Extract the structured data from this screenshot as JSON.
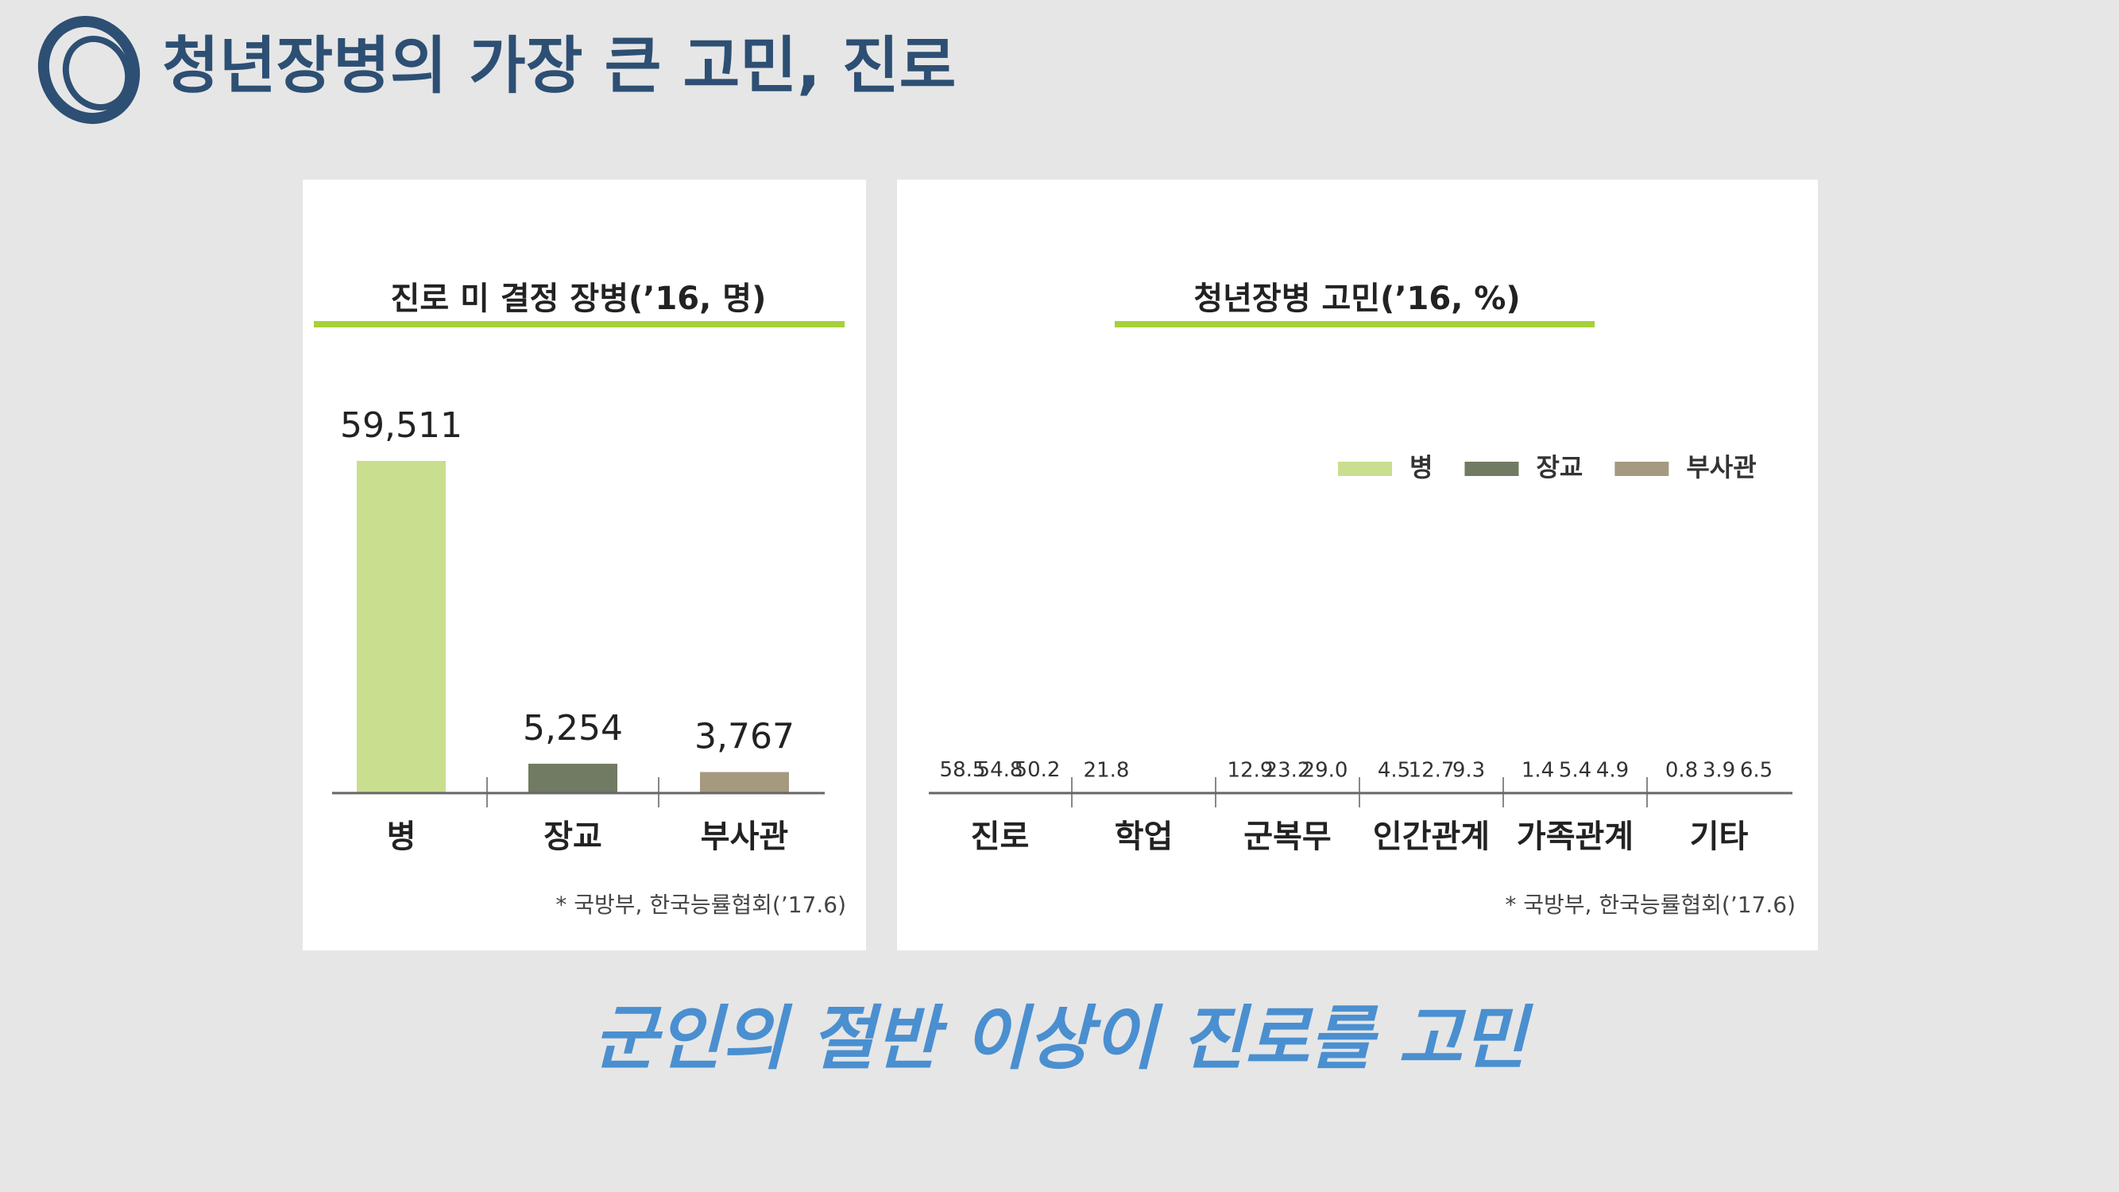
{
  "header": {
    "title": "청년장병의 가장 큰 고민, 진로"
  },
  "caption": "군인의 절반 이상이 진로를 고민",
  "chart_data": [
    {
      "type": "bar",
      "title": "진로 미 결정 장병(’16, 명)",
      "categories": [
        "병",
        "장교",
        "부사관"
      ],
      "values": [
        59511,
        5254,
        3767
      ],
      "value_labels": [
        "59,511",
        "5,254",
        "3,767"
      ],
      "colors": [
        "#c9de8f",
        "#717a62",
        "#a59a80"
      ],
      "note": "* 국방부, 한국능률협회(’17.6)"
    },
    {
      "type": "bar",
      "title": "청년장병 고민(’16, %)",
      "categories": [
        "진로",
        "학업",
        "군복무",
        "인간관계",
        "가족관계",
        "기타"
      ],
      "series": [
        {
          "name": "병",
          "color": "#c9de8f",
          "values": [
            58.5,
            21.8,
            12.9,
            4.5,
            1.4,
            0.8
          ]
        },
        {
          "name": "장교",
          "color": "#717a62",
          "values": [
            54.8,
            null,
            23.2,
            12.7,
            5.4,
            3.9
          ]
        },
        {
          "name": "부사관",
          "color": "#a59a80",
          "values": [
            50.2,
            null,
            29,
            9.3,
            4.9,
            6.5
          ],
          "value_labels": [
            "50.2",
            null,
            "29.0",
            "9.3",
            "4.9",
            "6.5"
          ]
        }
      ],
      "legend": "upper right",
      "note": "* 국방부, 한국능률협회(’17.6)"
    }
  ]
}
